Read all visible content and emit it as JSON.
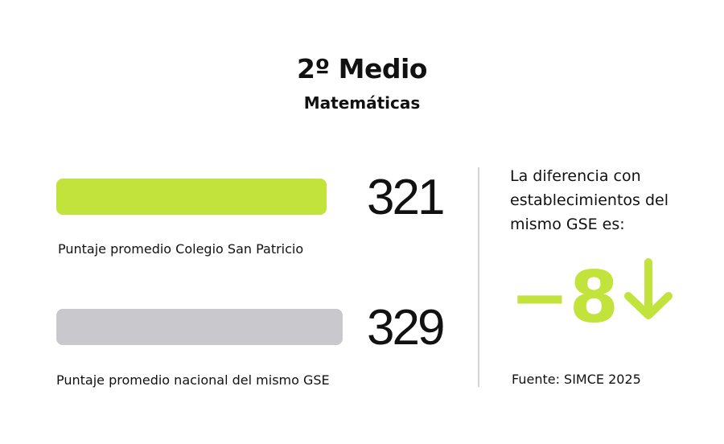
{
  "header": {
    "title": "2º Medio",
    "subtitle": "Matemáticas"
  },
  "scores": [
    {
      "value": "321",
      "label": "Puntaje promedio Colegio San Patricio",
      "color": "#c2e23c"
    },
    {
      "value": "329",
      "label": "Puntaje promedio nacional del mismo GSE",
      "color": "#c9c8cc"
    }
  ],
  "difference": {
    "text": "La diferencia con establecimientos del mismo GSE es:",
    "value": "−8",
    "icon": "arrow-down-icon",
    "color": "#c2e23c"
  },
  "source": "Fuente: SIMCE 2025"
}
